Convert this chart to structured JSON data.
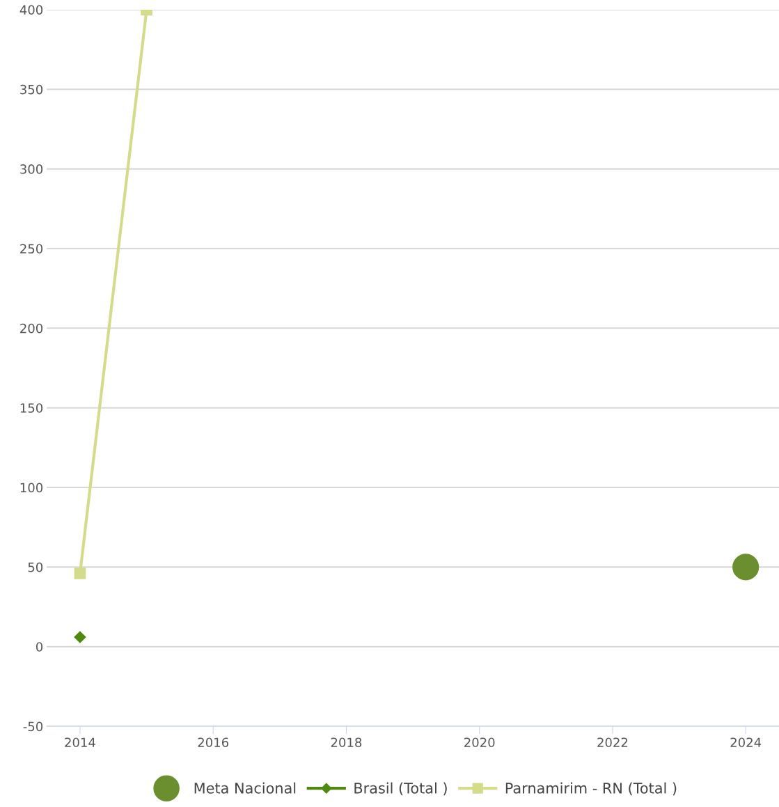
{
  "chart_data": {
    "type": "line",
    "series": [
      {
        "name": "Meta Nacional",
        "type": "scatter",
        "color": "#6b8e2f",
        "marker": "circle",
        "x": [
          2024
        ],
        "values": [
          50
        ]
      },
      {
        "name": "Brasil (Total )",
        "color": "#4f8a10",
        "marker": "diamond",
        "x": [
          2014
        ],
        "values": [
          6
        ]
      },
      {
        "name": "Parnamirim - RN (Total )",
        "color": "#d4dc8c",
        "marker": "square",
        "x": [
          2014,
          2015
        ],
        "values": [
          46,
          400
        ]
      }
    ],
    "xlim": [
      2013.5,
      2024.5
    ],
    "xticks": [
      2014,
      2016,
      2018,
      2020,
      2022,
      2024
    ],
    "ylim": [
      -50,
      400
    ],
    "yticks": [
      -50,
      0,
      50,
      100,
      150,
      200,
      250,
      300,
      350,
      400
    ],
    "grid": "y",
    "legend": "bottom"
  }
}
